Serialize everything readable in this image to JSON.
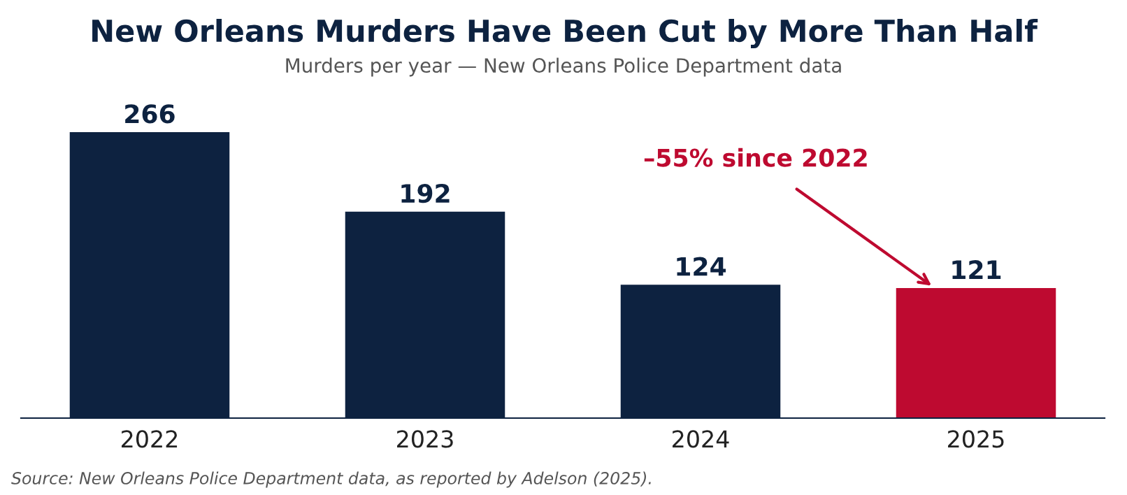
{
  "chart_data": {
    "type": "bar",
    "title": "New Orleans Murders Have Been Cut by More Than Half",
    "subtitle": "Murders per year — New Orleans Police Department data",
    "categories": [
      "2022",
      "2023",
      "2024",
      "2025"
    ],
    "values": [
      266,
      192,
      124,
      121
    ],
    "colors": [
      "#0d2240",
      "#0d2240",
      "#0d2240",
      "#be0a30"
    ],
    "data_labels": true,
    "grid": false,
    "legend": false,
    "annotations": [
      "–55% since 2022",
      "Source: New Orleans Police Department data, as reported by Adelson (2025)."
    ]
  }
}
